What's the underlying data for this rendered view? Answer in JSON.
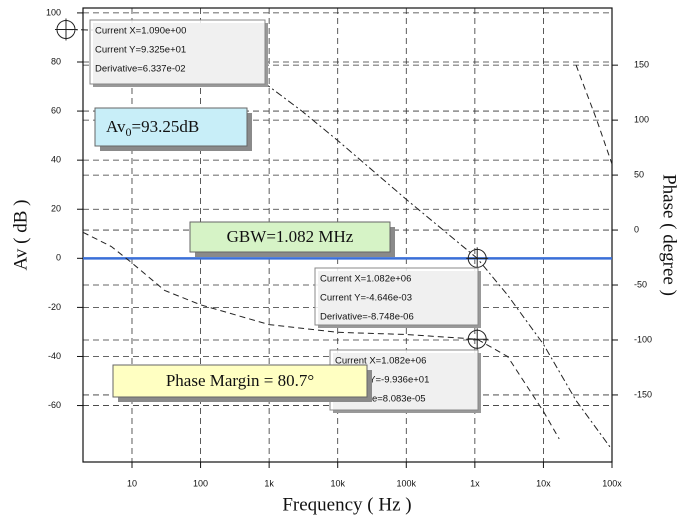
{
  "chart_data": {
    "type": "bode",
    "x_label": "Frequency ( Hz )",
    "y_label": "Av ( dB )",
    "y2_label": "Phase ( degree )",
    "log_x": true,
    "grid": true,
    "xlim": [
      1.93,
      100000000
    ],
    "xticks": [
      10,
      100,
      {
        "value": 1000,
        "label": "1k"
      },
      {
        "value": 10000,
        "label": "10k"
      },
      {
        "value": 100000,
        "label": "100k"
      },
      {
        "value": 1000000,
        "label": "1x"
      },
      {
        "value": 10000000,
        "label": "10x"
      },
      {
        "value": 100000000,
        "label": "100x"
      }
    ],
    "ylim": [
      -83,
      102
    ],
    "yticks": [
      100,
      80,
      60,
      40,
      20,
      0,
      -20,
      -40,
      -60
    ],
    "y2lim": [
      -211,
      202
    ],
    "y2ticks": [
      150,
      100,
      50,
      0,
      -50,
      -100,
      -150
    ],
    "series": [
      {
        "name": "Av",
        "color": "#222222",
        "x": [
          1.09,
          3,
          10,
          30,
          100,
          300,
          1000,
          3000,
          10000,
          100000,
          1082000,
          3000000,
          10000000,
          30000000,
          100000000
        ],
        "values": [
          93.25,
          93,
          92,
          90,
          87,
          80,
          70,
          60,
          48,
          24,
          0,
          -15,
          -35,
          -58,
          -78
        ]
      },
      {
        "name": "Phase",
        "color": "#222222",
        "axis": "y2",
        "x": [
          1.93,
          5,
          10,
          30,
          100,
          1000,
          10000,
          100000,
          1082000,
          3000000,
          10000000,
          17000000,
          17500000,
          30000000,
          60000000,
          100000000
        ],
        "values": [
          -2,
          -15,
          -30,
          -55,
          -68,
          -86,
          -93,
          -95,
          -99.3,
          -115,
          -165,
          -190,
          null,
          150,
          100,
          60
        ]
      }
    ],
    "hline": {
      "value": 0,
      "color": "#3a6fd8"
    },
    "cursors": [
      {
        "x": 1.09,
        "y": 93.25,
        "lines": [
          "Current X=1.090e+00",
          "Current Y=9.325e+01",
          "Derivative=6.337e-02"
        ]
      },
      {
        "x": 1082000,
        "y": -0.004646,
        "lines": [
          "Current X=1.082e+06",
          "Current Y=-4.646e-03",
          "Derivative=-8.748e-06"
        ]
      },
      {
        "x": 1082000,
        "y": -99.36,
        "axis": "y2",
        "lines": [
          "Current X=1.082e+06",
          "Current Y=-9.936e+01",
          "Derivative=8.083e-05"
        ]
      }
    ],
    "annotations": {
      "av0": {
        "main": "Av",
        "sub": "0",
        "rest": "=93.25dB",
        "color": "#c8eef8"
      },
      "gbw": {
        "text": "GBW=1.082 MHz",
        "color": "#d6f3c6"
      },
      "pm": {
        "text": "Phase Margin = 80.7°",
        "color": "#ffffc2"
      }
    }
  }
}
